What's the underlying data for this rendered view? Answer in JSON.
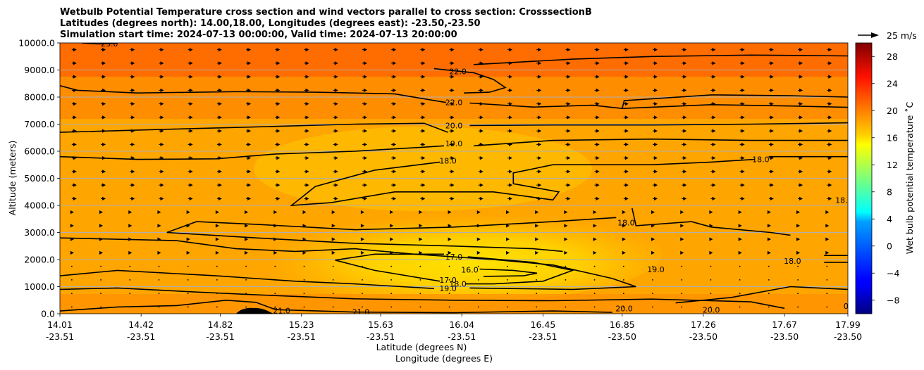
{
  "chart_data": {
    "type": "heatmap",
    "title_lines": [
      "Wetbulb Potential Temperature cross section and wind vectors parallel to cross section: CrosssectionB",
      "Latitudes (degrees north): 14.00,18.00, Longitudes (degrees east): -23.50,-23.50",
      "Simulation start time: 2024-07-13 00:00:00, Valid time: 2024-07-13 20:00:00"
    ],
    "xlabel_lat": "Latitude (degrees N)",
    "xlabel_lon": "Longitude (degrees E)",
    "ylabel": "Altitude (meters)",
    "xlim": [
      14.01,
      17.99
    ],
    "ylim": [
      0,
      10000
    ],
    "x_ticks": [
      {
        "lat": "14.01",
        "lon": "-23.51",
        "value": 14.01
      },
      {
        "lat": "14.42",
        "lon": "-23.51",
        "value": 14.42
      },
      {
        "lat": "14.82",
        "lon": "-23.51",
        "value": 14.82
      },
      {
        "lat": "15.23",
        "lon": "-23.51",
        "value": 15.23
      },
      {
        "lat": "15.63",
        "lon": "-23.51",
        "value": 15.63
      },
      {
        "lat": "16.04",
        "lon": "-23.51",
        "value": 16.04
      },
      {
        "lat": "16.45",
        "lon": "-23.51",
        "value": 16.45
      },
      {
        "lat": "16.85",
        "lon": "-23.50",
        "value": 16.85
      },
      {
        "lat": "17.26",
        "lon": "-23.50",
        "value": 17.26
      },
      {
        "lat": "17.67",
        "lon": "-23.50",
        "value": 17.67
      },
      {
        "lat": "17.99",
        "lon": "-23.50",
        "value": 17.99
      }
    ],
    "y_ticks": [
      "0.0",
      "1000.0",
      "2000.0",
      "3000.0",
      "4000.0",
      "5000.0",
      "6000.0",
      "7000.0",
      "8000.0",
      "9000.0",
      "10000.0"
    ],
    "y_tick_values": [
      0,
      1000,
      2000,
      3000,
      4000,
      5000,
      6000,
      7000,
      8000,
      9000,
      10000
    ],
    "grid": "horizontal",
    "colorbar": {
      "label": "Wet bulb potential temperature ˚C",
      "range": [
        -10,
        30
      ],
      "ticks": [
        -8,
        -4,
        0,
        4,
        8,
        12,
        16,
        20,
        24,
        28
      ],
      "tick_labels": [
        "−8",
        "−4",
        "0",
        "4",
        "8",
        "12",
        "16",
        "20",
        "24",
        "28"
      ],
      "colormap": "jet"
    },
    "quiver_key": "25 m/s",
    "contour_labels": [
      {
        "text": "23.0",
        "x": 14.26,
        "alt": 9980
      },
      {
        "text": "22.0",
        "x": 16.02,
        "alt": 8950
      },
      {
        "text": "22.0",
        "x": 16.0,
        "alt": 7800
      },
      {
        "text": "20.0",
        "x": 16.0,
        "alt": 6950
      },
      {
        "text": "19.0",
        "x": 16.0,
        "alt": 6280
      },
      {
        "text": "18.0",
        "x": 15.97,
        "alt": 5650
      },
      {
        "text": "18.0",
        "x": 17.55,
        "alt": 5700
      },
      {
        "text": "18.0",
        "x": 16.87,
        "alt": 3370
      },
      {
        "text": "18.0",
        "x": 17.97,
        "alt": 4200
      },
      {
        "text": "17.0",
        "x": 16.0,
        "alt": 2100
      },
      {
        "text": "16.0",
        "x": 16.08,
        "alt": 1620
      },
      {
        "text": "17.0",
        "x": 15.97,
        "alt": 1250
      },
      {
        "text": "18.0",
        "x": 16.02,
        "alt": 1100
      },
      {
        "text": "19.0",
        "x": 15.97,
        "alt": 930
      },
      {
        "text": "19.0",
        "x": 17.02,
        "alt": 1640
      },
      {
        "text": "18.0",
        "x": 17.71,
        "alt": 1950
      },
      {
        "text": "21.0",
        "x": 15.13,
        "alt": 120
      },
      {
        "text": "21.0",
        "x": 15.53,
        "alt": 60
      },
      {
        "text": "20.0",
        "x": 16.86,
        "alt": 200
      },
      {
        "text": "20.0",
        "x": 17.3,
        "alt": 140
      },
      {
        "text": "0",
        "x": 17.98,
        "alt": 280
      }
    ],
    "contours": [
      {
        "level": 23,
        "points": [
          [
            14.12,
            10000
          ],
          [
            14.2,
            9960
          ],
          [
            14.3,
            9990
          ]
        ]
      },
      {
        "level": 22,
        "points": [
          [
            15.9,
            9050
          ],
          [
            16.1,
            8900
          ],
          [
            16.2,
            8650
          ],
          [
            16.26,
            8350
          ],
          [
            16.18,
            8180
          ],
          [
            16.05,
            8150
          ]
        ]
      },
      {
        "level": 22,
        "points": [
          [
            14.01,
            8420
          ],
          [
            14.1,
            8250
          ],
          [
            14.4,
            8150
          ],
          [
            14.9,
            8200
          ],
          [
            15.3,
            8180
          ],
          [
            15.7,
            8120
          ],
          [
            15.96,
            7800
          ]
        ]
      },
      {
        "level": 22,
        "points": [
          [
            16.08,
            7780
          ],
          [
            16.4,
            7630
          ],
          [
            16.7,
            7700
          ],
          [
            16.85,
            7580
          ],
          [
            17.3,
            7720
          ],
          [
            17.7,
            7670
          ],
          [
            17.99,
            7620
          ]
        ]
      },
      {
        "level": 22,
        "points": [
          [
            16.85,
            7580
          ],
          [
            16.86,
            7870
          ],
          [
            17.3,
            8080
          ],
          [
            17.7,
            8050
          ],
          [
            17.99,
            8000
          ]
        ]
      },
      {
        "level": 22,
        "points": [
          [
            16.1,
            9200
          ],
          [
            16.6,
            9400
          ],
          [
            17.0,
            9500
          ],
          [
            17.5,
            9550
          ],
          [
            17.99,
            9520
          ]
        ]
      },
      {
        "level": 20,
        "points": [
          [
            14.01,
            6700
          ],
          [
            14.5,
            6800
          ],
          [
            15.0,
            6900
          ],
          [
            15.5,
            7000
          ],
          [
            15.85,
            7030
          ],
          [
            15.97,
            6700
          ]
        ]
      },
      {
        "level": 20,
        "points": [
          [
            16.08,
            6950
          ],
          [
            16.5,
            6970
          ],
          [
            17.0,
            6970
          ],
          [
            17.5,
            7000
          ],
          [
            17.99,
            7050
          ]
        ]
      },
      {
        "level": 19,
        "points": [
          [
            14.01,
            5800
          ],
          [
            14.4,
            5700
          ],
          [
            14.8,
            5720
          ],
          [
            15.1,
            5900
          ],
          [
            15.5,
            6000
          ],
          [
            15.85,
            6150
          ],
          [
            15.95,
            6200
          ]
        ]
      },
      {
        "level": 19,
        "points": [
          [
            16.1,
            6200
          ],
          [
            16.5,
            6400
          ],
          [
            17.0,
            6450
          ],
          [
            17.5,
            6400
          ],
          [
            17.99,
            6400
          ]
        ]
      },
      {
        "level": 18,
        "points": [
          [
            15.93,
            5600
          ],
          [
            15.6,
            5300
          ],
          [
            15.3,
            4700
          ],
          [
            15.18,
            4000
          ],
          [
            15.38,
            4100
          ],
          [
            15.7,
            4500
          ],
          [
            16.2,
            4500
          ],
          [
            16.5,
            4200
          ],
          [
            16.53,
            4500
          ],
          [
            16.3,
            4800
          ],
          [
            16.3,
            5200
          ],
          [
            16.5,
            5500
          ],
          [
            17.0,
            5500
          ],
          [
            17.3,
            5600
          ],
          [
            17.52,
            5700
          ]
        ]
      },
      {
        "level": 18,
        "points": [
          [
            17.59,
            5800
          ],
          [
            17.8,
            5800
          ],
          [
            17.99,
            5800
          ]
        ]
      },
      {
        "level": 18,
        "points": [
          [
            14.55,
            3000
          ],
          [
            14.7,
            3400
          ],
          [
            15.0,
            3300
          ],
          [
            15.5,
            3100
          ],
          [
            16.0,
            3200
          ],
          [
            16.5,
            3400
          ],
          [
            16.82,
            3550
          ]
        ]
      },
      {
        "level": 18,
        "points": [
          [
            14.55,
            3000
          ],
          [
            15.0,
            2800
          ],
          [
            15.5,
            2600
          ],
          [
            16.0,
            2500
          ],
          [
            16.4,
            2400
          ],
          [
            16.55,
            2300
          ]
        ]
      },
      {
        "level": 18,
        "points": [
          [
            16.9,
            3900
          ],
          [
            16.92,
            3250
          ],
          [
            17.2,
            3400
          ],
          [
            17.3,
            3200
          ],
          [
            17.6,
            3000
          ],
          [
            17.7,
            2900
          ]
        ]
      },
      {
        "level": 17,
        "points": [
          [
            15.4,
            1980
          ],
          [
            15.6,
            2200
          ],
          [
            15.95,
            2200
          ]
        ]
      },
      {
        "level": 17,
        "points": [
          [
            16.07,
            2100
          ],
          [
            16.4,
            1900
          ],
          [
            16.6,
            1600
          ],
          [
            16.45,
            1200
          ],
          [
            16.2,
            1100
          ],
          [
            16.06,
            1100
          ]
        ]
      },
      {
        "level": 17,
        "points": [
          [
            15.4,
            1980
          ],
          [
            15.6,
            1600
          ],
          [
            15.93,
            1200
          ]
        ]
      },
      {
        "level": 16,
        "points": [
          [
            16.13,
            1650
          ],
          [
            16.3,
            1600
          ],
          [
            16.42,
            1500
          ],
          [
            16.35,
            1400
          ],
          [
            16.15,
            1380
          ]
        ]
      },
      {
        "level": 19,
        "points": [
          [
            14.01,
            1400
          ],
          [
            14.3,
            1600
          ],
          [
            14.8,
            1400
          ],
          [
            15.2,
            1200
          ],
          [
            15.5,
            1100
          ],
          [
            15.9,
            930
          ]
        ]
      },
      {
        "level": 19,
        "points": [
          [
            16.08,
            950
          ],
          [
            16.6,
            900
          ],
          [
            16.92,
            1000
          ],
          [
            16.8,
            1300
          ],
          [
            16.5,
            1800
          ],
          [
            16.2,
            2000
          ],
          [
            15.8,
            2200
          ],
          [
            15.5,
            2400
          ],
          [
            15.2,
            2300
          ],
          [
            14.9,
            2400
          ],
          [
            14.6,
            2700
          ],
          [
            14.01,
            2800
          ]
        ]
      },
      {
        "level": 20,
        "points": [
          [
            14.01,
            900
          ],
          [
            14.3,
            950
          ],
          [
            14.7,
            800
          ],
          [
            15.0,
            700
          ],
          [
            15.5,
            550
          ],
          [
            16.0,
            500
          ],
          [
            16.5,
            480
          ],
          [
            17.0,
            540
          ],
          [
            17.5,
            440
          ],
          [
            17.67,
            200
          ]
        ]
      },
      {
        "level": 20,
        "points": [
          [
            17.12,
            400
          ],
          [
            17.4,
            600
          ],
          [
            17.7,
            1000
          ],
          [
            17.99,
            900
          ]
        ]
      },
      {
        "level": 21,
        "points": [
          [
            14.01,
            100
          ],
          [
            14.3,
            250
          ],
          [
            14.6,
            300
          ],
          [
            14.85,
            500
          ],
          [
            15.0,
            420
          ],
          [
            15.1,
            150
          ],
          [
            15.5,
            60
          ],
          [
            16.0,
            40
          ],
          [
            16.5,
            100
          ],
          [
            16.8,
            50
          ]
        ]
      },
      {
        "level": 18,
        "points": [
          [
            17.87,
            1900
          ],
          [
            17.99,
            1900
          ]
        ]
      },
      {
        "level": 18,
        "points": [
          [
            17.87,
            2150
          ],
          [
            17.99,
            2150
          ]
        ]
      }
    ]
  }
}
